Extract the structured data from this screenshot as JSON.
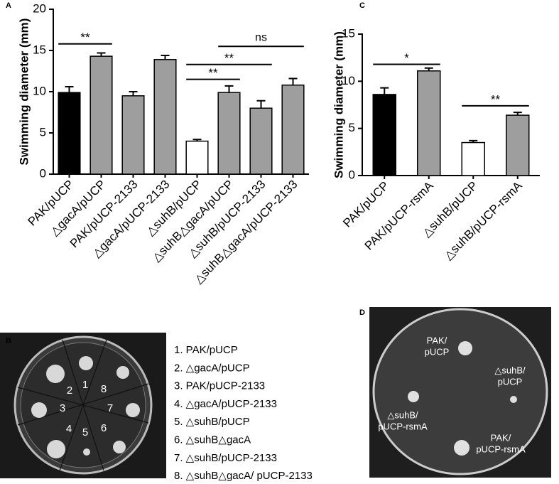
{
  "chart_data": [
    {
      "type": "bar",
      "panel": "A",
      "ylabel": "Swimming diameter (mm)",
      "categories": [
        "PAK/pUCP",
        "△gacA/pUCP",
        "PAK/pUCP-2133",
        "△gacA/pUCP-2133",
        "△suhB/pUCP",
        "△suhB△gacA/pUCP",
        "△suhB/pUCP-2133",
        "△suhB△gacA/pUCP-2133"
      ],
      "values": [
        9.9,
        14.3,
        9.5,
        13.9,
        4.0,
        9.9,
        8.0,
        10.8
      ],
      "errors": [
        0.7,
        0.4,
        0.5,
        0.5,
        0.2,
        0.8,
        0.9,
        0.8
      ],
      "colors": [
        "#000000",
        "#9e9e9e",
        "#9e9e9e",
        "#9e9e9e",
        "#ffffff",
        "#9e9e9e",
        "#9e9e9e",
        "#9e9e9e"
      ],
      "ylim": [
        0,
        20
      ],
      "yticks": [
        0,
        5,
        10,
        15,
        20
      ],
      "annotations": [
        {
          "label": "**",
          "from": 0,
          "to": 1,
          "y": 15.8
        },
        {
          "label": "**",
          "from": 4,
          "to": 5,
          "y": 11.5
        },
        {
          "label": "**",
          "from": 4,
          "to": 6,
          "y": 13.3
        },
        {
          "label": "ns",
          "from": 5,
          "to": 7,
          "y": 15.5
        }
      ]
    },
    {
      "type": "bar",
      "panel": "C",
      "ylabel": "Swimming diameter (mm)",
      "categories": [
        "PAK/pUCP",
        "PAK/pUCP-rsmA",
        "△suhB/pUCP",
        "△suhB/pUCP-rsmA"
      ],
      "values": [
        8.6,
        11.1,
        3.5,
        6.4
      ],
      "errors": [
        0.7,
        0.3,
        0.2,
        0.3
      ],
      "colors": [
        "#000000",
        "#9e9e9e",
        "#ffffff",
        "#9e9e9e"
      ],
      "ylim": [
        0,
        15
      ],
      "yticks": [
        0,
        5,
        10,
        15
      ],
      "annotations": [
        {
          "label": "*",
          "from": 0,
          "to": 1,
          "y": 11.8
        },
        {
          "label": "**",
          "from": 2,
          "to": 3,
          "y": 7.4
        }
      ]
    }
  ],
  "panels": {
    "B": {
      "label": "B",
      "plate_numbers": [
        "1",
        "2",
        "3",
        "4",
        "5",
        "6",
        "7",
        "8"
      ],
      "legend": [
        "1.  PAK/pUCP",
        "2.  △gacA/pUCP",
        "3.  PAK/pUCP-2133",
        "4.  △gacA/pUCP-2133",
        "5.  △suhB/pUCP",
        "6.  △suhB△gacA",
        "7.  △suhB/pUCP-2133",
        "8.  △suhB△gacA/ pUCP-2133"
      ]
    },
    "D": {
      "label": "D",
      "spots": [
        [
          "PAK/",
          "pUCP"
        ],
        [
          "△suhB/",
          "pUCP"
        ],
        [
          "△suhB/",
          "pUCP-rsmA"
        ],
        [
          "PAK/",
          "pUCP-rsmA"
        ]
      ]
    }
  }
}
